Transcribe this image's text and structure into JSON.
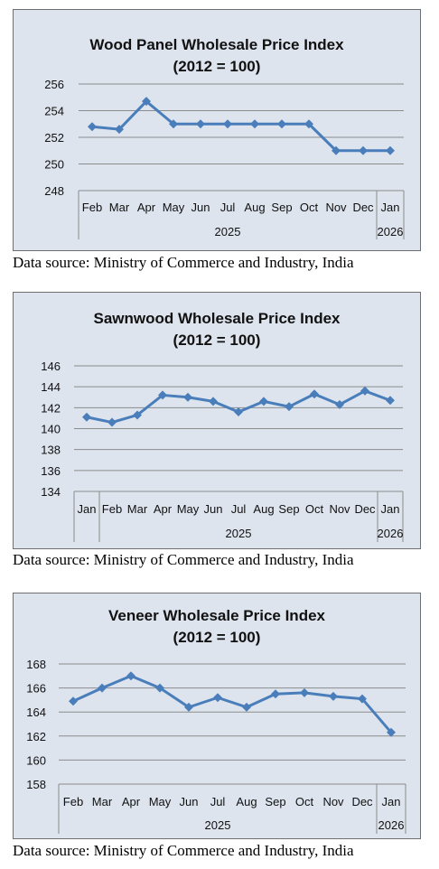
{
  "charts": [
    {
      "title": "Wood Panel Wholesale Price Index",
      "subtitle": "(2012 = 100)",
      "source": "Data source: Ministry of Commerce and Industry, India"
    },
    {
      "title": "Sawnwood  Wholesale Price Index",
      "subtitle": "(2012 = 100)",
      "source": "Data source: Ministry of Commerce and Industry, India"
    },
    {
      "title": "Veneer Wholesale Price Index",
      "subtitle": "(2012 = 100)",
      "source": "Data source: Ministry of Commerce and Industry, India"
    }
  ],
  "chart_data": [
    {
      "type": "line",
      "title": "Wood Panel Wholesale Price Index",
      "subtitle": "(2012 = 100)",
      "categories": [
        "Feb",
        "Mar",
        "Apr",
        "May",
        "Jun",
        "Jul",
        "Aug",
        "Sep",
        "Oct",
        "Nov",
        "Dec",
        "Jan"
      ],
      "year_groups": [
        {
          "label": "2025",
          "count": 11
        },
        {
          "label": "2026",
          "count": 1
        }
      ],
      "values": [
        252.8,
        252.6,
        254.7,
        253.0,
        253.0,
        253.0,
        253.0,
        253.0,
        253.0,
        251.0,
        251.0,
        251.0
      ],
      "ylim": [
        248,
        256
      ],
      "yticks": [
        248,
        250,
        252,
        254,
        256
      ],
      "grid": true,
      "color": "#4a7ebb"
    },
    {
      "type": "line",
      "title": "Sawnwood  Wholesale Price Index",
      "subtitle": "(2012 = 100)",
      "categories": [
        "Jan",
        "Feb",
        "Mar",
        "Apr",
        "May",
        "Jun",
        "Jul",
        "Aug",
        "Sep",
        "Oct",
        "Nov",
        "Dec",
        "Jan"
      ],
      "year_groups": [
        {
          "label": "",
          "count": 1
        },
        {
          "label": "2025",
          "count": 11
        },
        {
          "label": "2026",
          "count": 1
        }
      ],
      "values": [
        141.1,
        140.6,
        141.3,
        143.2,
        143.0,
        142.6,
        141.6,
        142.6,
        142.1,
        143.3,
        142.3,
        143.6,
        142.7
      ],
      "ylim": [
        134,
        146
      ],
      "yticks": [
        134,
        136,
        138,
        140,
        142,
        144,
        146
      ],
      "grid": true,
      "color": "#4a7ebb"
    },
    {
      "type": "line",
      "title": "Veneer Wholesale Price Index",
      "subtitle": "(2012 = 100)",
      "categories": [
        "Feb",
        "Mar",
        "Apr",
        "May",
        "Jun",
        "Jul",
        "Aug",
        "Sep",
        "Oct",
        "Nov",
        "Dec",
        "Jan"
      ],
      "year_groups": [
        {
          "label": "2025",
          "count": 11
        },
        {
          "label": "2026",
          "count": 1
        }
      ],
      "values": [
        164.9,
        166.0,
        167.0,
        166.0,
        164.4,
        165.2,
        164.4,
        165.5,
        165.6,
        165.3,
        165.1,
        162.3
      ],
      "ylim": [
        158,
        168
      ],
      "yticks": [
        158,
        160,
        162,
        164,
        166,
        168
      ],
      "grid": true,
      "color": "#4a7ebb"
    }
  ]
}
